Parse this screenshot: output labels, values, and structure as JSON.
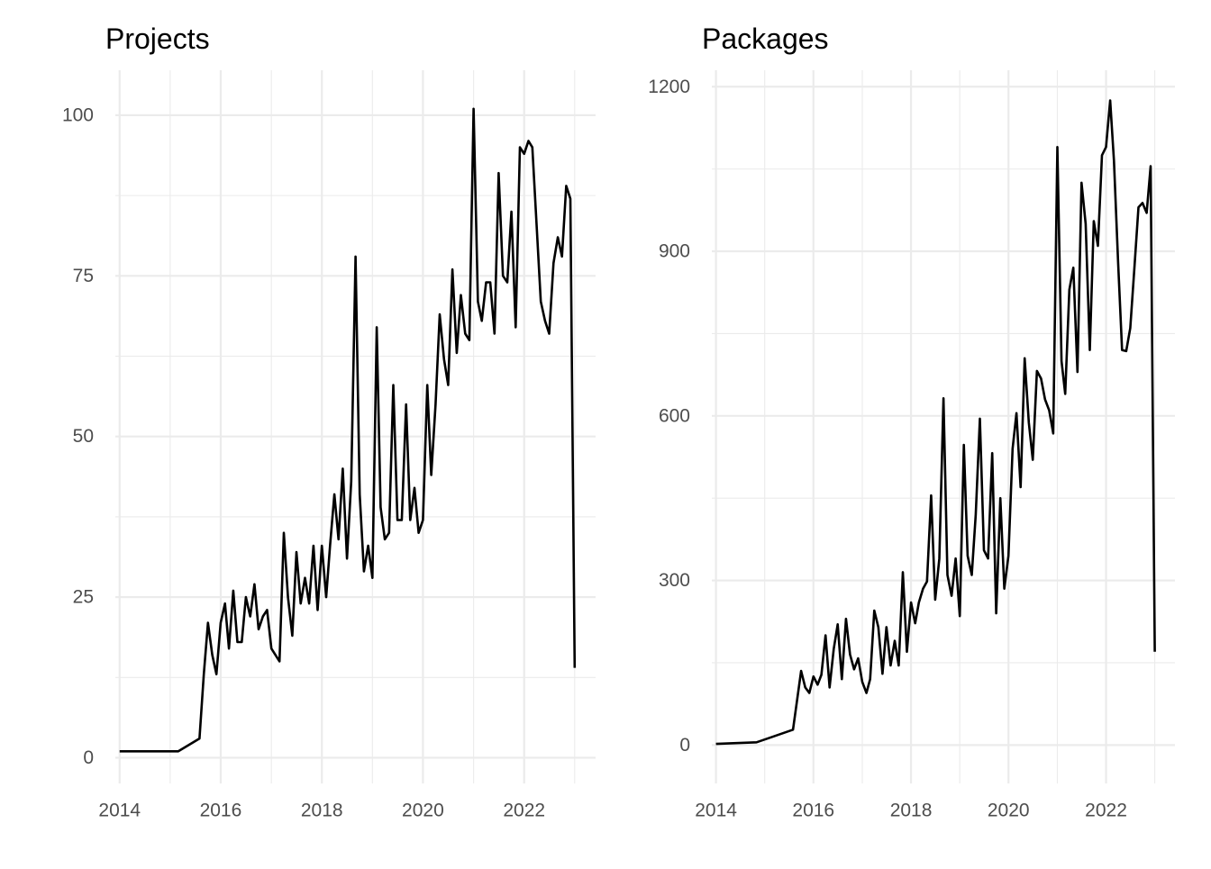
{
  "chart_data": [
    {
      "type": "line",
      "title": "Projects",
      "xlabel": "",
      "ylabel": "",
      "x_ticks": [
        "2014",
        "2016",
        "2018",
        "2020",
        "2022"
      ],
      "y_ticks": [
        "0",
        "25",
        "50",
        "75",
        "100"
      ],
      "xlim": [
        "2013-12-01",
        "2023-06-01"
      ],
      "ylim": [
        -4,
        107
      ],
      "grid": true,
      "series": [
        {
          "color": "#000000",
          "points": [
            [
              "2014-01-01",
              1
            ],
            [
              "2015-03-01",
              1
            ],
            [
              "2015-08-01",
              3
            ],
            [
              "2015-09-01",
              13
            ],
            [
              "2015-10-01",
              21
            ],
            [
              "2015-11-01",
              16
            ],
            [
              "2015-12-01",
              13
            ],
            [
              "2016-01-01",
              21
            ],
            [
              "2016-02-01",
              24
            ],
            [
              "2016-03-01",
              17
            ],
            [
              "2016-04-01",
              26
            ],
            [
              "2016-05-01",
              18
            ],
            [
              "2016-06-01",
              18
            ],
            [
              "2016-07-01",
              25
            ],
            [
              "2016-08-01",
              22
            ],
            [
              "2016-09-01",
              27
            ],
            [
              "2016-10-01",
              20
            ],
            [
              "2016-11-01",
              22
            ],
            [
              "2016-12-01",
              23
            ],
            [
              "2017-01-01",
              17
            ],
            [
              "2017-03-01",
              15
            ],
            [
              "2017-04-01",
              35
            ],
            [
              "2017-05-01",
              25
            ],
            [
              "2017-06-01",
              19
            ],
            [
              "2017-07-01",
              32
            ],
            [
              "2017-08-01",
              24
            ],
            [
              "2017-09-01",
              28
            ],
            [
              "2017-10-01",
              24
            ],
            [
              "2017-11-01",
              33
            ],
            [
              "2017-12-01",
              23
            ],
            [
              "2018-01-01",
              33
            ],
            [
              "2018-02-01",
              25
            ],
            [
              "2018-03-01",
              33
            ],
            [
              "2018-04-01",
              41
            ],
            [
              "2018-05-01",
              34
            ],
            [
              "2018-06-01",
              45
            ],
            [
              "2018-07-01",
              31
            ],
            [
              "2018-08-01",
              43
            ],
            [
              "2018-09-01",
              78
            ],
            [
              "2018-10-01",
              41
            ],
            [
              "2018-11-01",
              29
            ],
            [
              "2018-12-01",
              33
            ],
            [
              "2019-01-01",
              28
            ],
            [
              "2019-02-01",
              67
            ],
            [
              "2019-03-01",
              39
            ],
            [
              "2019-04-01",
              34
            ],
            [
              "2019-05-01",
              35
            ],
            [
              "2019-06-01",
              58
            ],
            [
              "2019-07-01",
              37
            ],
            [
              "2019-08-01",
              37
            ],
            [
              "2019-09-01",
              55
            ],
            [
              "2019-10-01",
              37
            ],
            [
              "2019-11-01",
              42
            ],
            [
              "2019-12-01",
              35
            ],
            [
              "2020-01-01",
              37
            ],
            [
              "2020-02-01",
              58
            ],
            [
              "2020-03-01",
              44
            ],
            [
              "2020-04-01",
              55
            ],
            [
              "2020-05-01",
              69
            ],
            [
              "2020-06-01",
              62
            ],
            [
              "2020-07-01",
              58
            ],
            [
              "2020-08-01",
              76
            ],
            [
              "2020-09-01",
              63
            ],
            [
              "2020-10-01",
              72
            ],
            [
              "2020-11-01",
              66
            ],
            [
              "2020-12-01",
              65
            ],
            [
              "2021-01-01",
              101
            ],
            [
              "2021-02-01",
              71
            ],
            [
              "2021-03-01",
              68
            ],
            [
              "2021-04-01",
              74
            ],
            [
              "2021-05-01",
              74
            ],
            [
              "2021-06-01",
              66
            ],
            [
              "2021-07-01",
              91
            ],
            [
              "2021-08-01",
              75
            ],
            [
              "2021-09-01",
              74
            ],
            [
              "2021-10-01",
              85
            ],
            [
              "2021-11-01",
              67
            ],
            [
              "2021-12-01",
              95
            ],
            [
              "2022-01-01",
              94
            ],
            [
              "2022-02-01",
              96
            ],
            [
              "2022-03-01",
              95
            ],
            [
              "2022-05-01",
              71
            ],
            [
              "2022-06-01",
              68
            ],
            [
              "2022-07-01",
              66
            ],
            [
              "2022-08-01",
              77
            ],
            [
              "2022-09-01",
              81
            ],
            [
              "2022-10-01",
              78
            ],
            [
              "2022-11-01",
              89
            ],
            [
              "2022-12-01",
              87
            ],
            [
              "2023-01-01",
              14
            ]
          ]
        }
      ]
    },
    {
      "type": "line",
      "title": "Packages",
      "xlabel": "",
      "ylabel": "",
      "x_ticks": [
        "2014",
        "2016",
        "2018",
        "2020",
        "2022"
      ],
      "y_ticks": [
        "0",
        "300",
        "600",
        "900",
        "1200"
      ],
      "xlim": [
        "2013-12-01",
        "2023-06-01"
      ],
      "ylim": [
        -70,
        1230
      ],
      "grid": true,
      "series": [
        {
          "color": "#000000",
          "points": [
            [
              "2014-01-01",
              2
            ],
            [
              "2014-11-01",
              5
            ],
            [
              "2015-03-01",
              15
            ],
            [
              "2015-08-01",
              28
            ],
            [
              "2015-10-01",
              135
            ],
            [
              "2015-11-01",
              105
            ],
            [
              "2015-12-01",
              95
            ],
            [
              "2016-01-01",
              125
            ],
            [
              "2016-02-01",
              110
            ],
            [
              "2016-03-01",
              128
            ],
            [
              "2016-04-01",
              200
            ],
            [
              "2016-05-01",
              105
            ],
            [
              "2016-06-01",
              175
            ],
            [
              "2016-07-01",
              220
            ],
            [
              "2016-08-01",
              120
            ],
            [
              "2016-09-01",
              230
            ],
            [
              "2016-10-01",
              165
            ],
            [
              "2016-11-01",
              138
            ],
            [
              "2016-12-01",
              158
            ],
            [
              "2017-01-01",
              115
            ],
            [
              "2017-02-01",
              95
            ],
            [
              "2017-03-01",
              120
            ],
            [
              "2017-04-01",
              245
            ],
            [
              "2017-05-01",
              215
            ],
            [
              "2017-06-01",
              130
            ],
            [
              "2017-07-01",
              215
            ],
            [
              "2017-08-01",
              145
            ],
            [
              "2017-09-01",
              190
            ],
            [
              "2017-10-01",
              145
            ],
            [
              "2017-11-01",
              315
            ],
            [
              "2017-12-01",
              170
            ],
            [
              "2018-01-01",
              260
            ],
            [
              "2018-02-01",
              222
            ],
            [
              "2018-03-01",
              260
            ],
            [
              "2018-04-01",
              285
            ],
            [
              "2018-05-01",
              298
            ],
            [
              "2018-06-01",
              455
            ],
            [
              "2018-07-01",
              265
            ],
            [
              "2018-08-01",
              340
            ],
            [
              "2018-09-01",
              632
            ],
            [
              "2018-10-01",
              310
            ],
            [
              "2018-11-01",
              272
            ],
            [
              "2018-12-01",
              340
            ],
            [
              "2019-01-01",
              235
            ],
            [
              "2019-02-01",
              547
            ],
            [
              "2019-03-01",
              345
            ],
            [
              "2019-04-01",
              310
            ],
            [
              "2019-05-01",
              420
            ],
            [
              "2019-06-01",
              595
            ],
            [
              "2019-07-01",
              355
            ],
            [
              "2019-08-01",
              340
            ],
            [
              "2019-09-01",
              532
            ],
            [
              "2019-10-01",
              240
            ],
            [
              "2019-11-01",
              450
            ],
            [
              "2019-12-01",
              285
            ],
            [
              "2020-01-01",
              345
            ],
            [
              "2020-02-01",
              540
            ],
            [
              "2020-03-01",
              605
            ],
            [
              "2020-04-01",
              470
            ],
            [
              "2020-05-01",
              705
            ],
            [
              "2020-06-01",
              588
            ],
            [
              "2020-07-01",
              520
            ],
            [
              "2020-08-01",
              682
            ],
            [
              "2020-09-01",
              668
            ],
            [
              "2020-10-01",
              630
            ],
            [
              "2020-11-01",
              610
            ],
            [
              "2020-12-01",
              568
            ],
            [
              "2021-01-01",
              1090
            ],
            [
              "2021-02-01",
              700
            ],
            [
              "2021-03-01",
              640
            ],
            [
              "2021-04-01",
              830
            ],
            [
              "2021-05-01",
              870
            ],
            [
              "2021-06-01",
              680
            ],
            [
              "2021-07-01",
              1025
            ],
            [
              "2021-08-01",
              950
            ],
            [
              "2021-09-01",
              720
            ],
            [
              "2021-10-01",
              955
            ],
            [
              "2021-11-01",
              910
            ],
            [
              "2021-12-01",
              1075
            ],
            [
              "2022-01-01",
              1090
            ],
            [
              "2022-02-01",
              1175
            ],
            [
              "2022-03-01",
              1065
            ],
            [
              "2022-04-01",
              880
            ],
            [
              "2022-05-01",
              720
            ],
            [
              "2022-06-01",
              718
            ],
            [
              "2022-07-01",
              760
            ],
            [
              "2022-08-01",
              870
            ],
            [
              "2022-09-01",
              980
            ],
            [
              "2022-10-01",
              988
            ],
            [
              "2022-11-01",
              970
            ],
            [
              "2022-12-01",
              1055
            ],
            [
              "2023-01-01",
              170
            ]
          ]
        }
      ]
    }
  ]
}
